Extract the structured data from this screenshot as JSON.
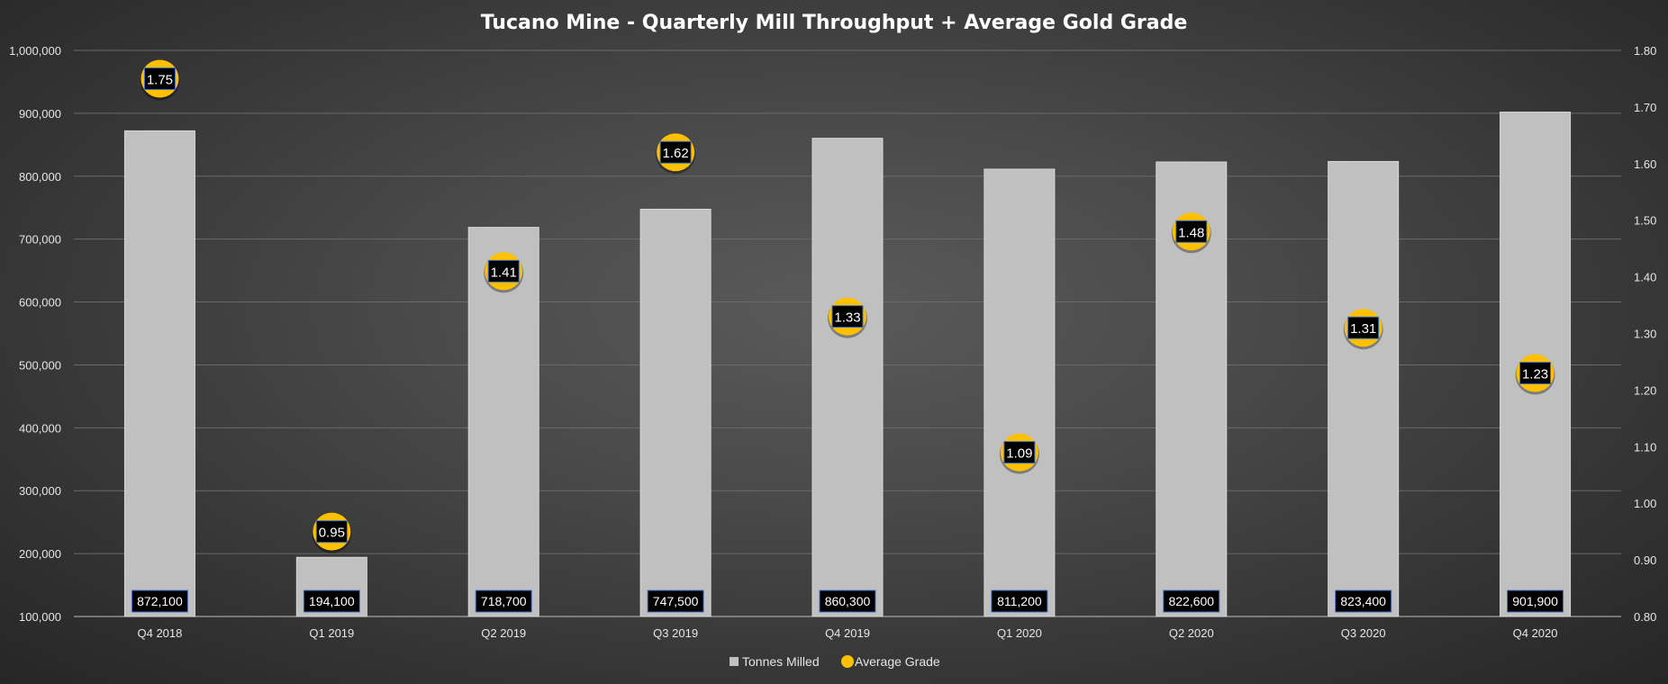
{
  "colors": {
    "bar": "#c0c0c0",
    "bar_stroke": "#d8d8d8",
    "grade_marker": "#ffc000",
    "grid": "#6a6a6a",
    "label_box": "#000000",
    "label_box_border": "#4472c4"
  },
  "chart_data": {
    "type": "bar",
    "title": "Tucano Mine - Quarterly Mill Throughput + Average Gold Grade",
    "categories": [
      "Q4 2018",
      "Q1 2019",
      "Q2 2019",
      "Q3 2019",
      "Q4 2019",
      "Q1 2020",
      "Q2 2020",
      "Q3 2020",
      "Q4 2020"
    ],
    "series": [
      {
        "name": "Tonnes Milled",
        "type": "bar",
        "axis": "left",
        "values": [
          872100,
          194100,
          718700,
          747500,
          860300,
          811200,
          822600,
          823400,
          901900
        ],
        "labels": [
          "872,100",
          "194,100",
          "718,700",
          "747,500",
          "860,300",
          "811,200",
          "822,600",
          "823,400",
          "901,900"
        ]
      },
      {
        "name": "Average Grade",
        "type": "scatter",
        "axis": "right",
        "values": [
          1.75,
          0.95,
          1.41,
          1.62,
          1.33,
          1.09,
          1.48,
          1.31,
          1.23
        ],
        "labels": [
          "1.75",
          "0.95",
          "1.41",
          "1.62",
          "1.33",
          "1.09",
          "1.48",
          "1.31",
          "1.23"
        ]
      }
    ],
    "y_left": {
      "min": 100000,
      "max": 1000000,
      "ticks": [
        100000,
        200000,
        300000,
        400000,
        500000,
        600000,
        700000,
        800000,
        900000,
        1000000
      ],
      "tick_labels": [
        "100,000",
        "200,000",
        "300,000",
        "400,000",
        "500,000",
        "600,000",
        "700,000",
        "800,000",
        "900,000",
        "1,000,000"
      ]
    },
    "y_right": {
      "min": 0.8,
      "max": 1.8,
      "ticks": [
        0.8,
        0.9,
        1.0,
        1.1,
        1.2,
        1.3,
        1.4,
        1.5,
        1.6,
        1.7,
        1.8
      ],
      "tick_labels": [
        "0.80",
        "0.90",
        "1.00",
        "1.10",
        "1.20",
        "1.30",
        "1.40",
        "1.50",
        "1.60",
        "1.70",
        "1.80"
      ]
    },
    "grid": true,
    "legend": {
      "position": "bottom",
      "items": [
        {
          "label": "Tonnes Milled",
          "marker": "square"
        },
        {
          "label": "Average Grade",
          "marker": "circle"
        }
      ]
    }
  }
}
